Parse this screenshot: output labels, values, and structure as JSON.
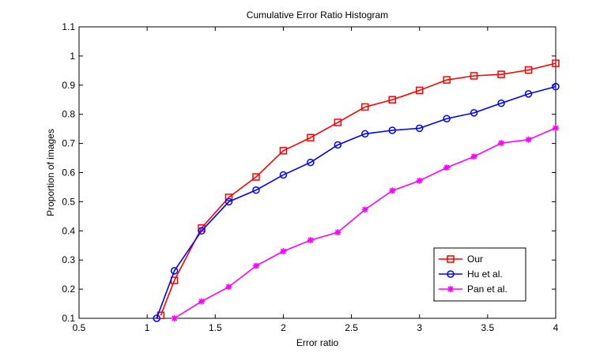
{
  "chart_data": {
    "type": "line",
    "title": "Cumulative Error Ratio Histogram",
    "xlabel": "Error ratio",
    "ylabel": "Proportion of images",
    "xlim": [
      0.5,
      4
    ],
    "ylim": [
      0.1,
      1.1
    ],
    "xticks": [
      "0.5",
      "1",
      "1.5",
      "2",
      "2.5",
      "3",
      "3.5",
      "4"
    ],
    "yticks": [
      "0.1",
      "0.2",
      "0.3",
      "0.4",
      "0.5",
      "0.6",
      "0.7",
      "0.8",
      "0.9",
      "1",
      "1.1"
    ],
    "grid": false,
    "legend_position": "bottom-right",
    "series": [
      {
        "name": "Our",
        "color": "#ff0000",
        "marker": "square",
        "x": [
          1.1,
          1.2,
          1.4,
          1.6,
          1.8,
          2.0,
          2.2,
          2.4,
          2.6,
          2.8,
          3.0,
          3.2,
          3.4,
          3.6,
          3.8,
          4.0
        ],
        "y": [
          0.11,
          0.23,
          0.41,
          0.515,
          0.585,
          0.675,
          0.72,
          0.772,
          0.825,
          0.85,
          0.882,
          0.918,
          0.932,
          0.937,
          0.952,
          0.975
        ]
      },
      {
        "name": "Hu et al.",
        "color": "#0000ff",
        "marker": "circle",
        "x": [
          1.07,
          1.2,
          1.4,
          1.6,
          1.8,
          2.0,
          2.2,
          2.4,
          2.6,
          2.8,
          3.0,
          3.2,
          3.4,
          3.6,
          3.8,
          4.0
        ],
        "y": [
          0.1,
          0.263,
          0.4,
          0.5,
          0.54,
          0.592,
          0.635,
          0.695,
          0.733,
          0.745,
          0.752,
          0.785,
          0.805,
          0.838,
          0.87,
          0.895
        ]
      },
      {
        "name": "Pan et al.",
        "color": "#ff00ff",
        "marker": "star",
        "x": [
          1.2,
          1.4,
          1.6,
          1.8,
          2.0,
          2.2,
          2.4,
          2.6,
          2.8,
          3.0,
          3.2,
          3.4,
          3.6,
          3.8,
          4.0
        ],
        "y": [
          0.1,
          0.158,
          0.208,
          0.28,
          0.33,
          0.368,
          0.395,
          0.473,
          0.538,
          0.572,
          0.617,
          0.655,
          0.701,
          0.713,
          0.753
        ]
      }
    ]
  }
}
